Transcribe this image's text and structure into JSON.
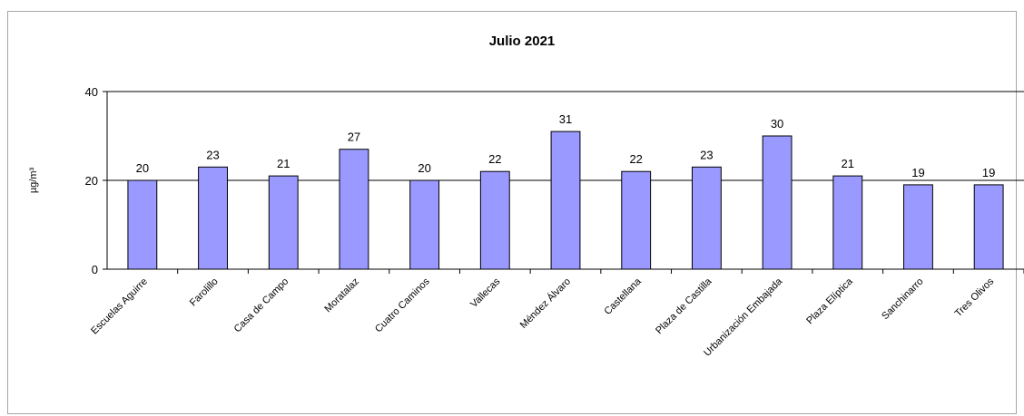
{
  "chart_data": {
    "type": "bar",
    "title": "Julio 2021",
    "xlabel": "",
    "ylabel": "µg/m³",
    "ylim": [
      0,
      40
    ],
    "yticks": [
      0,
      20,
      40
    ],
    "grid": true,
    "bar_color": "#9999ff",
    "bar_edge_color": "#000000",
    "categories": [
      "Escuelas Aguirre",
      "Farolillo",
      "Casa de Campo",
      "Moratalaz",
      "Cuatro Caminos",
      "Vallecas",
      "Méndez Álvaro",
      "Castellana",
      "Plaza de Castilla",
      "Urbanización Embajada",
      "Plaza Elíptica",
      "Sanchinarro",
      "Tres Olivos"
    ],
    "values": [
      20,
      23,
      21,
      27,
      20,
      22,
      31,
      22,
      23,
      30,
      21,
      19,
      19
    ]
  }
}
